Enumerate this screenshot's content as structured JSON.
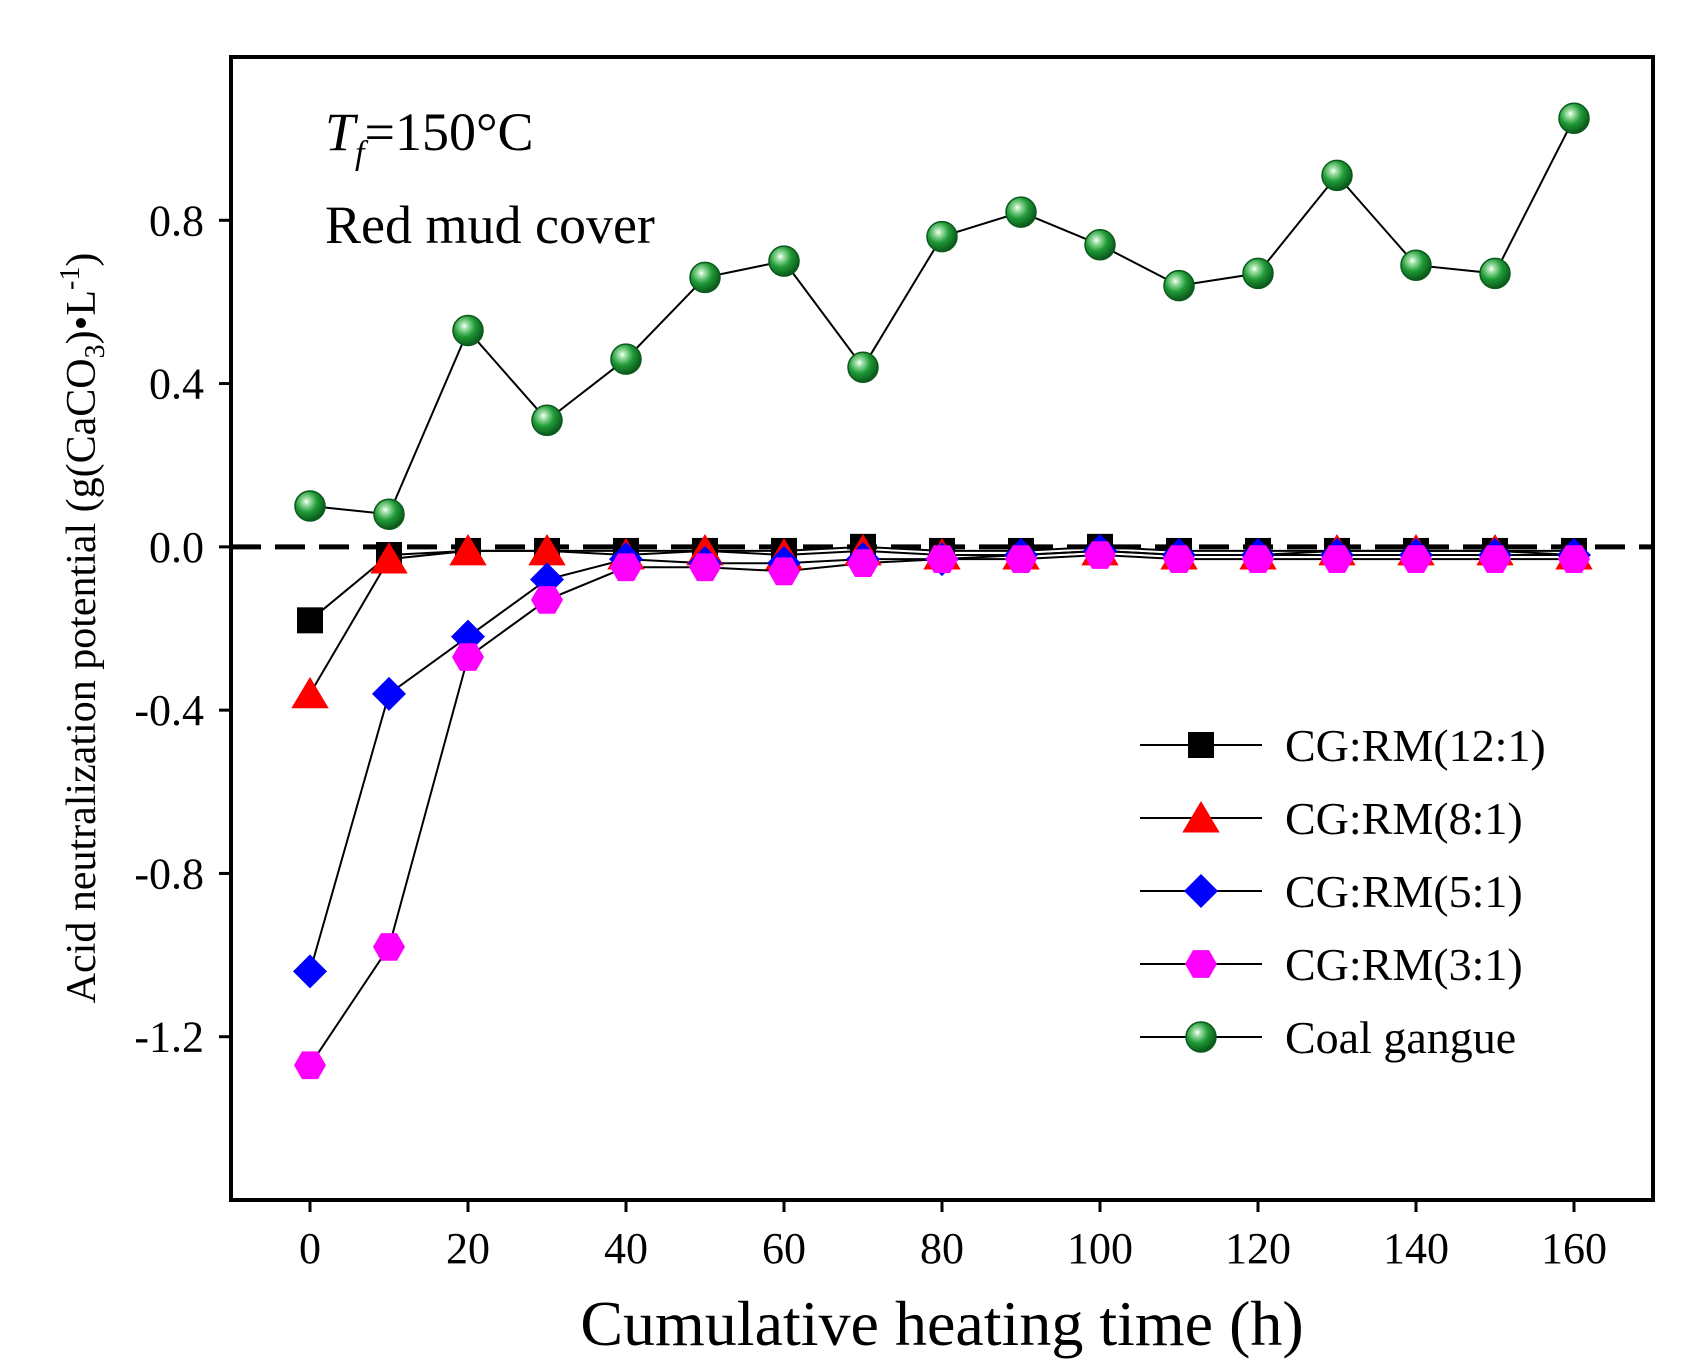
{
  "chart_data": {
    "type": "line",
    "title": "",
    "xlabel": "Cumulative heating time (h)",
    "ylabel": {
      "prefix": "Acid neutralization potential (g(CaCO",
      "sub": "3",
      "mid": ")•L",
      "sup": "-1",
      "suffix": ")"
    },
    "xlim": [
      -10,
      170
    ],
    "ylim": [
      -1.6,
      1.2
    ],
    "xticks": [
      0,
      20,
      40,
      60,
      80,
      100,
      120,
      140,
      160
    ],
    "yticks": [
      0.8,
      0.4,
      0.0,
      -0.4,
      -0.8,
      -1.2
    ],
    "ytick_labels": [
      "0.8",
      "0.4",
      "0.0",
      "-0.4",
      "-0.8",
      "-1.2"
    ],
    "reference_line": {
      "y": 0,
      "style": "dashed",
      "color": "#000000"
    },
    "annotations": {
      "temp_symbol": "T",
      "temp_sub": "f",
      "temp_value": "=150°C",
      "cover": "Red mud cover"
    },
    "legend_position": "lower-right",
    "x": [
      0,
      10,
      20,
      30,
      40,
      50,
      60,
      70,
      80,
      90,
      100,
      110,
      120,
      130,
      140,
      150,
      160
    ],
    "series": [
      {
        "name": "CG:RM(12:1)",
        "marker": "square",
        "color": "#000000",
        "values": [
          -0.18,
          -0.02,
          -0.01,
          -0.01,
          -0.01,
          -0.01,
          -0.01,
          0.0,
          -0.01,
          -0.01,
          0.0,
          -0.01,
          -0.01,
          -0.01,
          -0.01,
          -0.01,
          -0.01
        ]
      },
      {
        "name": "CG:RM(8:1)",
        "marker": "triangle",
        "color": "#ff0000",
        "values": [
          -0.36,
          -0.03,
          -0.01,
          -0.01,
          -0.02,
          -0.01,
          -0.02,
          -0.01,
          -0.02,
          -0.02,
          -0.01,
          -0.02,
          -0.02,
          -0.01,
          -0.01,
          -0.01,
          -0.02
        ]
      },
      {
        "name": "CG:RM(5:1)",
        "marker": "diamond",
        "color": "#0000ff",
        "values": [
          -1.04,
          -0.36,
          -0.22,
          -0.08,
          -0.03,
          -0.04,
          -0.04,
          -0.03,
          -0.03,
          -0.02,
          -0.01,
          -0.02,
          -0.02,
          -0.02,
          -0.02,
          -0.02,
          -0.02
        ]
      },
      {
        "name": "CG:RM(3:1)",
        "marker": "hexagon",
        "color": "#ff00ff",
        "values": [
          -1.27,
          -0.98,
          -0.27,
          -0.13,
          -0.05,
          -0.05,
          -0.06,
          -0.04,
          -0.03,
          -0.03,
          -0.02,
          -0.03,
          -0.03,
          -0.03,
          -0.03,
          -0.03,
          -0.03
        ]
      },
      {
        "name": "Coal gangue",
        "marker": "sphere",
        "color": "#1a8a2e",
        "values": [
          0.1,
          0.08,
          0.53,
          0.31,
          0.46,
          0.66,
          0.7,
          0.44,
          0.76,
          0.82,
          0.74,
          0.64,
          0.67,
          0.91,
          0.69,
          0.67,
          1.05
        ]
      }
    ]
  }
}
